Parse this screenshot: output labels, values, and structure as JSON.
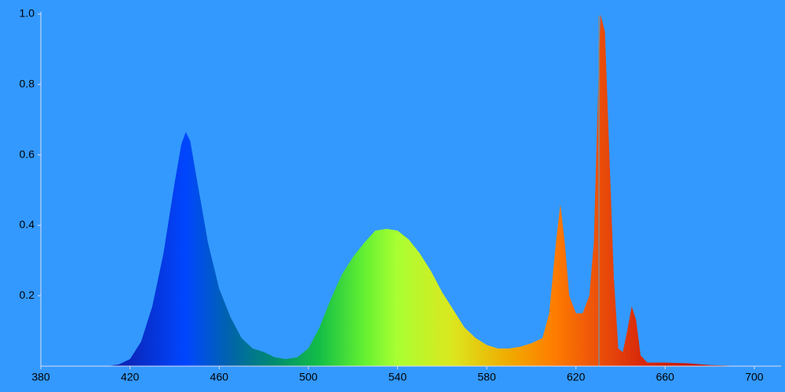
{
  "chart_data": {
    "type": "area",
    "x": [
      410,
      415,
      420,
      425,
      430,
      435,
      440,
      443,
      445,
      447,
      450,
      455,
      460,
      465,
      470,
      475,
      480,
      485,
      490,
      495,
      500,
      505,
      510,
      515,
      520,
      525,
      530,
      535,
      540,
      545,
      550,
      555,
      560,
      565,
      570,
      575,
      580,
      585,
      590,
      595,
      600,
      605,
      608,
      611,
      613,
      615,
      617,
      620,
      623,
      626,
      628,
      630,
      631,
      633,
      635,
      637,
      639,
      641,
      643,
      645,
      647,
      649,
      652,
      660,
      670,
      680,
      690,
      700
    ],
    "values": [
      0,
      0.005,
      0.02,
      0.07,
      0.17,
      0.32,
      0.52,
      0.63,
      0.665,
      0.64,
      0.53,
      0.35,
      0.22,
      0.14,
      0.08,
      0.05,
      0.04,
      0.025,
      0.02,
      0.025,
      0.05,
      0.11,
      0.19,
      0.26,
      0.31,
      0.35,
      0.385,
      0.39,
      0.385,
      0.36,
      0.32,
      0.27,
      0.21,
      0.16,
      0.11,
      0.08,
      0.06,
      0.05,
      0.05,
      0.055,
      0.065,
      0.08,
      0.15,
      0.35,
      0.46,
      0.35,
      0.2,
      0.15,
      0.15,
      0.2,
      0.35,
      0.8,
      1.0,
      0.95,
      0.6,
      0.25,
      0.05,
      0.04,
      0.1,
      0.17,
      0.13,
      0.03,
      0.01,
      0.01,
      0.008,
      0.003,
      0.001,
      0
    ],
    "xlim": [
      380,
      712
    ],
    "ylim": [
      0,
      1
    ],
    "xticks": [
      380,
      420,
      460,
      500,
      540,
      580,
      620,
      660,
      700
    ],
    "yticks": [
      0.2,
      0.4,
      0.6,
      0.8,
      {
        "value": 1,
        "label": "1.0"
      }
    ]
  }
}
